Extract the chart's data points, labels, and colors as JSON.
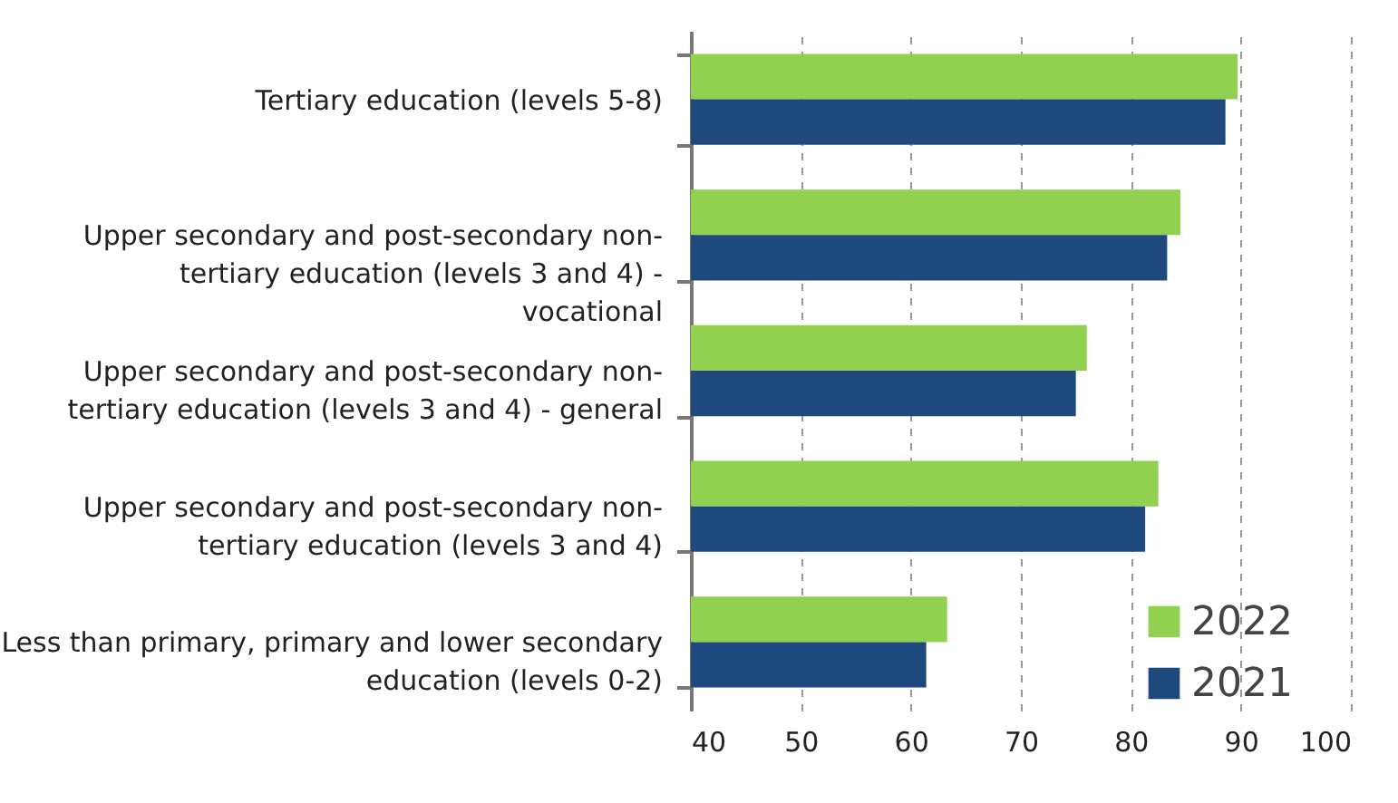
{
  "chart_data": {
    "type": "bar",
    "orientation": "horizontal",
    "categories": [
      "Tertiary education (levels 5-8)",
      "Upper secondary and post-secondary non-tertiary education (levels 3 and 4) - vocational",
      "Upper secondary and post-secondary non-tertiary education (levels 3 and 4) - general",
      "Upper secondary and post-secondary non-tertiary education (levels 3 and 4)",
      "Less than primary, primary and lower secondary education (levels 0-2)"
    ],
    "series": [
      {
        "name": "2022",
        "color": "#92d050",
        "values": [
          89.7,
          84.5,
          76.0,
          82.5,
          63.3
        ]
      },
      {
        "name": "2021",
        "color": "#1f497d",
        "values": [
          88.6,
          83.3,
          75.0,
          81.3,
          61.4
        ]
      }
    ],
    "xlim": [
      40,
      100
    ],
    "xticks": [
      40,
      50,
      60,
      70,
      80,
      90,
      100
    ],
    "grid": "x",
    "legend": "bottom right"
  }
}
